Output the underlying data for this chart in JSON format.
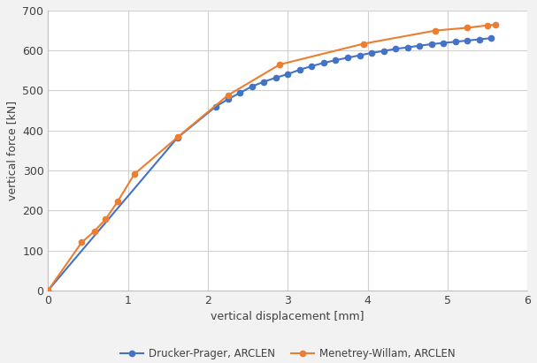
{
  "drucker_prager_x": [
    0.0,
    1.62,
    2.1,
    2.25,
    2.4,
    2.55,
    2.7,
    2.85,
    3.0,
    3.15,
    3.3,
    3.45,
    3.6,
    3.75,
    3.9,
    4.05,
    4.2,
    4.35,
    4.5,
    4.65,
    4.8,
    4.95,
    5.1,
    5.25,
    5.4,
    5.55
  ],
  "drucker_prager_y": [
    0,
    382,
    460,
    478,
    494,
    510,
    522,
    532,
    541,
    552,
    561,
    569,
    576,
    582,
    588,
    594,
    599,
    604,
    608,
    612,
    616,
    619,
    622,
    625,
    628,
    631
  ],
  "menetrey_willam_x": [
    0.0,
    0.42,
    0.58,
    0.72,
    0.87,
    1.08,
    1.62,
    2.25,
    2.9,
    3.95,
    4.85,
    5.25,
    5.5,
    5.6
  ],
  "menetrey_willam_y": [
    0,
    120,
    148,
    178,
    222,
    291,
    383,
    488,
    565,
    617,
    650,
    657,
    663,
    665
  ],
  "xlabel": "vertical displacement [mm]",
  "ylabel": "vertical force [kN]",
  "xlim": [
    0,
    6
  ],
  "ylim": [
    0,
    700
  ],
  "xticks": [
    0,
    1,
    2,
    3,
    4,
    5,
    6
  ],
  "yticks": [
    0,
    100,
    200,
    300,
    400,
    500,
    600,
    700
  ],
  "color_dp": "#4472C4",
  "color_mw": "#ED7D31",
  "label_dp": "Drucker-Prager, ARCLEN",
  "label_mw": "Menetrey-Willam, ARCLEN",
  "grid_color": "#D0D0D0",
  "plot_bg_color": "#FFFFFF",
  "fig_bg_color": "#F2F2F2",
  "spine_color": "#C0C0C0",
  "tick_label_color": "#404040",
  "axis_label_color": "#404040"
}
